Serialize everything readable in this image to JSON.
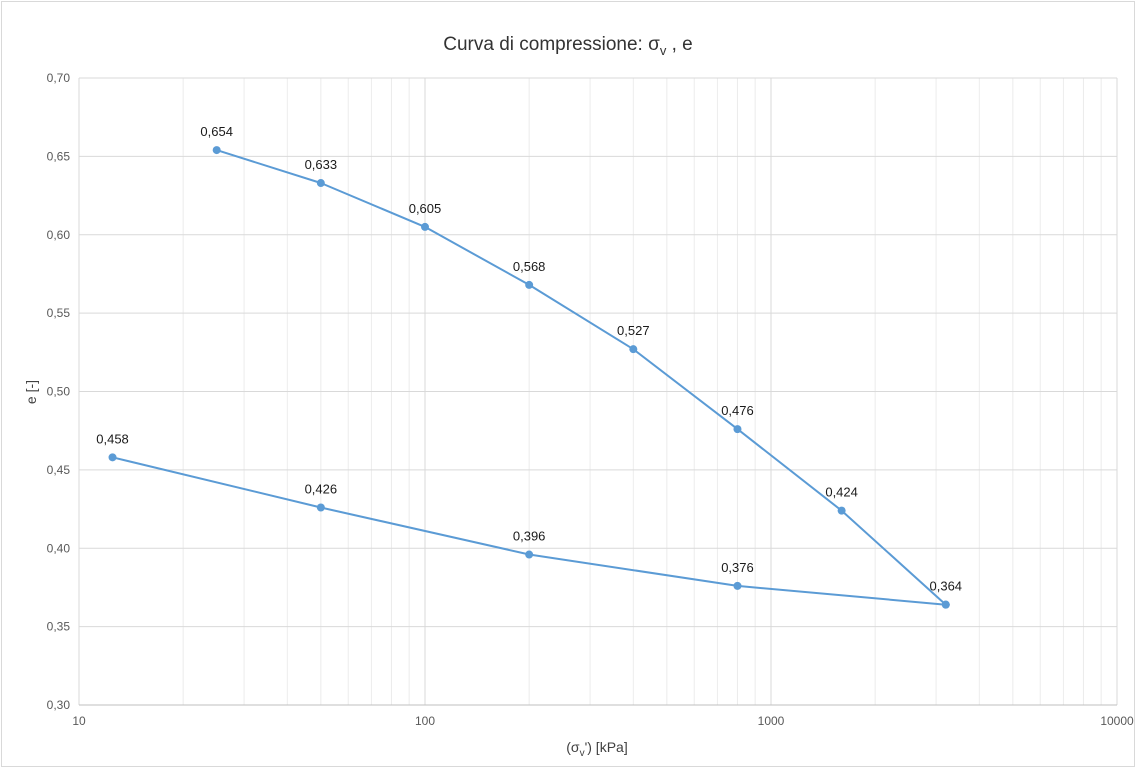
{
  "chart_data": {
    "type": "line",
    "title": {
      "main": "Curva di compressione: σ",
      "sub": "v",
      "tail": " , e"
    },
    "xlabel": {
      "pre": "(σ",
      "sub": "v",
      "post": "') [kPa]"
    },
    "ylabel": "e [-]",
    "x_scale": "log",
    "xlim": [
      10,
      10000
    ],
    "ylim": [
      0.3,
      0.7
    ],
    "x_ticks": [
      "10",
      "100",
      "1000",
      "10000"
    ],
    "y_ticks": [
      "0,30",
      "0,35",
      "0,40",
      "0,45",
      "0,50",
      "0,55",
      "0,60",
      "0,65",
      "0,70"
    ],
    "grid": true,
    "legend": "none",
    "colors": {
      "series": "#5b9bd5",
      "grid_major": "#d9d9d9",
      "grid_minor": "#ececec"
    },
    "series": [
      {
        "x": [
          25,
          50,
          100,
          200,
          400,
          800,
          1600,
          3200
        ],
        "y": [
          0.654,
          0.633,
          0.605,
          0.568,
          0.527,
          0.476,
          0.424,
          0.364
        ],
        "labels": [
          "0,654",
          "0,633",
          "0,605",
          "0,568",
          "0,527",
          "0,476",
          "0,424",
          "0,364"
        ]
      },
      {
        "x": [
          12.5,
          50,
          200,
          800,
          3200
        ],
        "y": [
          0.458,
          0.426,
          0.396,
          0.376,
          0.364
        ],
        "labels": [
          "0,458",
          "0,426",
          "0,396",
          "0,376",
          ""
        ]
      }
    ]
  }
}
